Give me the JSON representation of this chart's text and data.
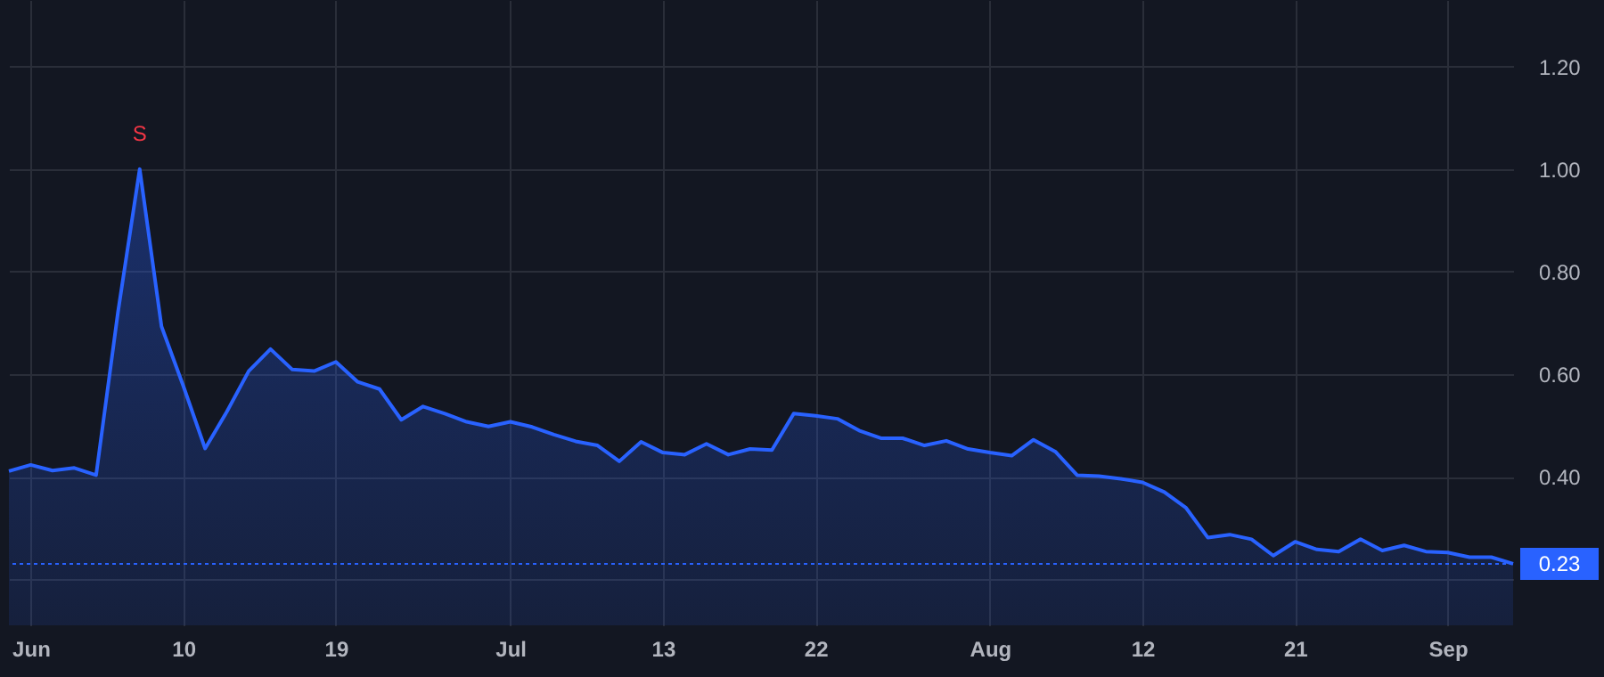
{
  "chart_data": {
    "type": "area",
    "categories": [
      null,
      "Jun",
      null,
      null,
      null,
      null,
      null,
      null,
      "10",
      null,
      null,
      null,
      null,
      null,
      null,
      "19",
      null,
      null,
      null,
      null,
      null,
      null,
      null,
      "Jul",
      null,
      null,
      null,
      null,
      null,
      null,
      "13",
      null,
      null,
      null,
      null,
      null,
      null,
      "22",
      null,
      null,
      null,
      null,
      null,
      null,
      null,
      "Aug",
      null,
      null,
      null,
      null,
      null,
      null,
      "12",
      null,
      null,
      null,
      null,
      null,
      null,
      "21",
      null,
      null,
      null,
      null,
      null,
      null,
      "Sep",
      null,
      null,
      null
    ],
    "series": [
      {
        "color": "#2962ff",
        "values": [
          0.411,
          0.423,
          0.412,
          0.417,
          0.403,
          0.72,
          1.0,
          0.693,
          0.577,
          0.455,
          0.527,
          0.606,
          0.649,
          0.609,
          0.606,
          0.624,
          0.585,
          0.571,
          0.511,
          0.537,
          0.523,
          0.507,
          0.498,
          0.507,
          0.497,
          0.482,
          0.469,
          0.461,
          0.43,
          0.468,
          0.447,
          0.443,
          0.464,
          0.443,
          0.454,
          0.452,
          0.523,
          0.519,
          0.513,
          0.49,
          0.475,
          0.475,
          0.461,
          0.47,
          0.454,
          0.447,
          0.441,
          0.472,
          0.449,
          0.403,
          0.401,
          0.396,
          0.389,
          0.37,
          0.339,
          0.281,
          0.287,
          0.278,
          0.246,
          0.273,
          0.258,
          0.254,
          0.278,
          0.256,
          0.266,
          0.254,
          0.252,
          0.243,
          0.243,
          0.23
        ]
      }
    ],
    "ylim": [
      0.11,
      1.33
    ],
    "yticks": [
      {
        "value": 0.2,
        "label": null
      },
      {
        "value": 0.4,
        "label": "0.40"
      },
      {
        "value": 0.6,
        "label": "0.60"
      },
      {
        "value": 0.8,
        "label": "0.80"
      },
      {
        "value": 1.0,
        "label": "1.00"
      },
      {
        "value": 1.2,
        "label": "1.20"
      }
    ],
    "ref_lines": [
      {
        "axis": "y",
        "value": 0.23,
        "label": "0.23",
        "color": "#2962ff",
        "line_style": "dotted"
      }
    ],
    "annotations": [
      {
        "text": "S",
        "y": 1.0
      }
    ],
    "grid": true,
    "marker": "none",
    "line_style": "solid"
  }
}
